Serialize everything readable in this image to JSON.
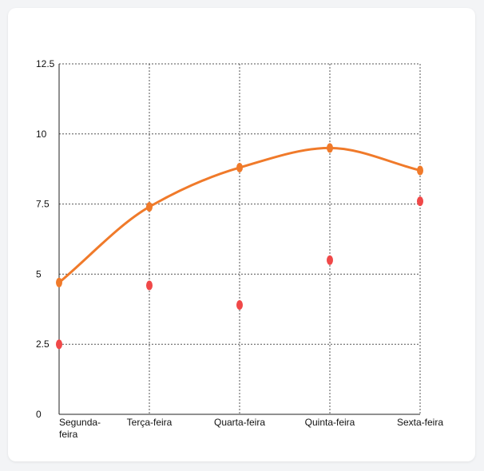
{
  "chart_data": {
    "type": "line",
    "categories": [
      "Segunda-feira",
      "Terça-feira",
      "Quarta-feira",
      "Quinta-feira",
      "Sexta-feira"
    ],
    "category_labels": [
      [
        "Segunda-",
        "feira"
      ],
      [
        "Terça-feira"
      ],
      [
        "Quarta-feira"
      ],
      [
        "Quinta-feira"
      ],
      [
        "Sexta-feira"
      ]
    ],
    "y_ticks": [
      "0",
      "2.5",
      "5",
      "7.5",
      "10",
      "12.5"
    ],
    "ylim": [
      0,
      12.5
    ],
    "grid": true,
    "series": [
      {
        "type": "line",
        "smooth": true,
        "color": "#f07a2a",
        "values": [
          4.7,
          7.4,
          8.8,
          9.5,
          8.7
        ]
      },
      {
        "type": "scatter",
        "color": "#f04848",
        "values": [
          2.5,
          4.6,
          3.9,
          5.5,
          7.6
        ]
      }
    ]
  }
}
